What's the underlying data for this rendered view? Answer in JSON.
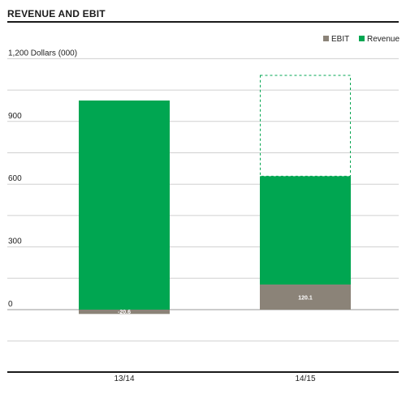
{
  "chart_data": {
    "type": "bar",
    "title": "REVENUE AND EBIT",
    "ylabel": "Dollars (000)",
    "ylim": [
      -300,
      1200
    ],
    "yticks": [
      0,
      300,
      600,
      900,
      1200
    ],
    "ytick_labels": [
      "0",
      "300",
      "600",
      "900",
      "1,200"
    ],
    "categories": [
      "13/14",
      "14/15"
    ],
    "series": [
      {
        "name": "EBIT",
        "values": [
          -20.6,
          120.1
        ],
        "color": "#8b8378",
        "data_labels": [
          "-20.6",
          "120.1"
        ]
      },
      {
        "name": "Revenue",
        "values": [
          1000,
          518
        ],
        "color": "#00a651"
      }
    ],
    "previous_revenue_outline": {
      "category": "14/15",
      "value": 1120,
      "color": "#00a651"
    },
    "legend": {
      "position": "top-right",
      "entries": [
        "EBIT",
        "Revenue"
      ]
    },
    "grid": true
  }
}
